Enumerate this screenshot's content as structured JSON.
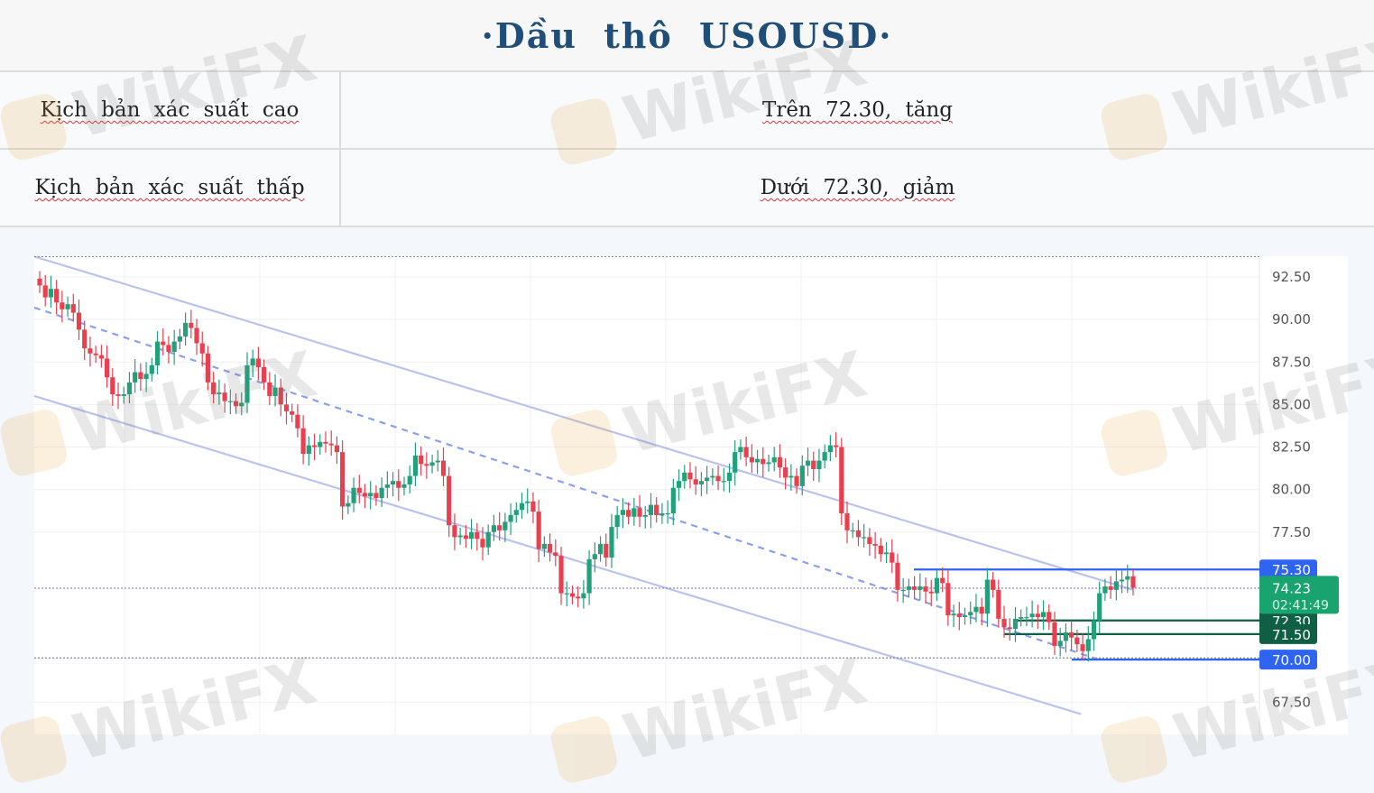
{
  "header": {
    "title": "·Dầu thô USOUSD·"
  },
  "scenarios": [
    {
      "label": "Kịch bản xác suất cao",
      "value": "Trên 72.30, tăng"
    },
    {
      "label": "Kịch bản xác suất thấp",
      "value": "Dưới 72.30, giảm"
    }
  ],
  "watermark": "WikiFX",
  "colors": {
    "up": "#22a07a",
    "down": "#e8404f",
    "channel": "#b9c3f0",
    "level_blue": "#2f64f0",
    "level_green": "#0e5f43",
    "current_price": "#19a36f",
    "title": "#1f4e79"
  },
  "chart_data": {
    "type": "candlestick",
    "title": "",
    "xlabel": "",
    "ylabel": "",
    "ylim": [
      66.5,
      94.0
    ],
    "yticks": [
      "92.50",
      "90.00",
      "87.50",
      "85.00",
      "82.50",
      "80.00",
      "77.50",
      "67.50"
    ],
    "grid": true,
    "current_price": {
      "value": "74.23",
      "countdown": "02:41:49"
    },
    "levels": [
      {
        "value": 75.3,
        "label": "75.30",
        "color": "#2f64f0"
      },
      {
        "value": 72.3,
        "label": "72.30",
        "color": "#0e5f43"
      },
      {
        "value": 71.5,
        "label": "71.50",
        "color": "#0e5f43"
      },
      {
        "value": 70.0,
        "label": "70.00",
        "color": "#2f64f0"
      }
    ],
    "dotted_levels": [
      93.7,
      74.2,
      70.1
    ],
    "closes": [
      92.0,
      91.3,
      91.8,
      91.0,
      90.6,
      90.9,
      90.4,
      89.4,
      88.3,
      88.0,
      87.9,
      87.7,
      86.6,
      85.6,
      85.5,
      85.6,
      86.3,
      86.9,
      86.5,
      86.8,
      87.3,
      88.7,
      88.5,
      88.1,
      88.7,
      89.0,
      89.8,
      89.5,
      88.6,
      88.0,
      86.3,
      85.6,
      85.7,
      85.2,
      85.2,
      84.9,
      85.1,
      87.3,
      87.7,
      87.2,
      86.3,
      85.5,
      86.0,
      85.0,
      84.6,
      84.4,
      83.6,
      82.1,
      82.6,
      82.5,
      82.8,
      82.7,
      82.6,
      82.2,
      79.0,
      79.2,
      80.1,
      79.8,
      79.6,
      79.8,
      79.5,
      80.1,
      80.3,
      80.5,
      80.1,
      80.3,
      80.8,
      82.0,
      81.5,
      81.4,
      81.6,
      81.7,
      80.8,
      77.9,
      77.2,
      77.3,
      77.1,
      77.5,
      77.1,
      76.6,
      77.5,
      77.9,
      77.6,
      78.1,
      78.5,
      78.8,
      79.2,
      79.3,
      78.7,
      76.5,
      76.8,
      76.3,
      76.1,
      73.9,
      73.9,
      73.7,
      73.6,
      73.9,
      75.9,
      76.2,
      76.8,
      76.0,
      77.8,
      78.5,
      78.8,
      78.4,
      78.9,
      78.4,
      78.5,
      79.1,
      78.5,
      78.6,
      78.6,
      80.1,
      80.5,
      81.0,
      80.6,
      80.3,
      80.5,
      80.7,
      80.8,
      80.5,
      80.5,
      81.0,
      82.2,
      82.5,
      81.9,
      81.6,
      81.8,
      81.5,
      81.6,
      81.9,
      81.3,
      80.7,
      80.8,
      80.2,
      81.4,
      81.7,
      81.2,
      81.7,
      82.2,
      82.6,
      82.5,
      78.6,
      77.6,
      77.6,
      77.2,
      77.2,
      76.8,
      76.7,
      76.2,
      76.3,
      75.7,
      74.1,
      74.1,
      74.3,
      74.1,
      74.3,
      74.0,
      73.9,
      74.8,
      74.5,
      72.6,
      72.7,
      72.5,
      72.6,
      72.8,
      73.1,
      72.7,
      74.7,
      74.1,
      72.4,
      71.9,
      71.8,
      72.4,
      72.5,
      72.5,
      72.7,
      72.5,
      72.8,
      72.2,
      70.8,
      71.1,
      71.6,
      71.3,
      70.9,
      70.5,
      71.2,
      72.3,
      73.9,
      74.3,
      74.1,
      74.6,
      74.7,
      74.9,
      74.23
    ]
  }
}
